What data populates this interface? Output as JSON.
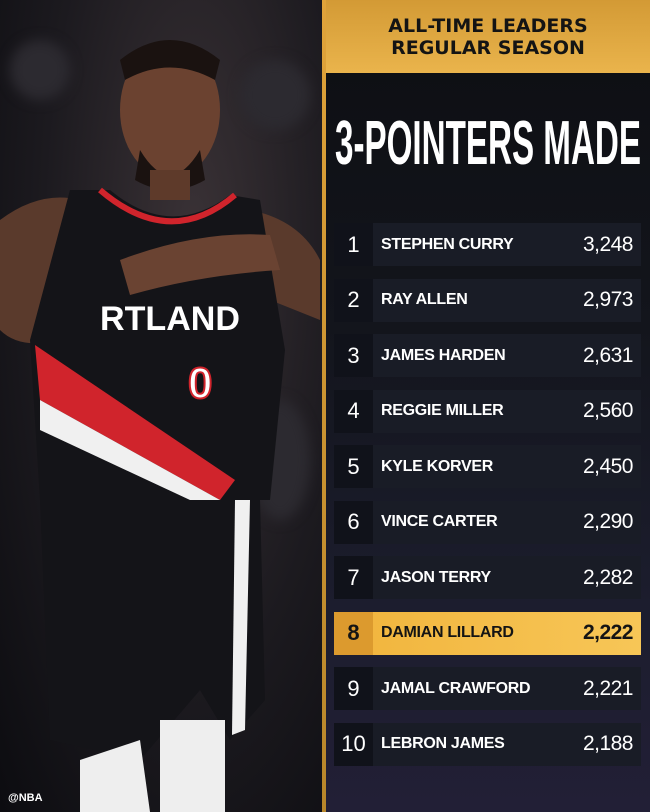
{
  "header": {
    "line1": "ALL-TIME LEADERS",
    "line2": "REGULAR SEASON"
  },
  "title": "3-POINTERS MADE",
  "highlight_color": "#f1b43c",
  "leaders": [
    {
      "rank": "1",
      "name": "STEPHEN CURRY",
      "value": "3,248"
    },
    {
      "rank": "2",
      "name": "RAY ALLEN",
      "value": "2,973"
    },
    {
      "rank": "3",
      "name": "JAMES HARDEN",
      "value": "2,631"
    },
    {
      "rank": "4",
      "name": "REGGIE MILLER",
      "value": "2,560"
    },
    {
      "rank": "5",
      "name": "KYLE KORVER",
      "value": "2,450"
    },
    {
      "rank": "6",
      "name": "VINCE CARTER",
      "value": "2,290"
    },
    {
      "rank": "7",
      "name": "JASON TERRY",
      "value": "2,282"
    },
    {
      "rank": "8",
      "name": "DAMIAN LILLARD",
      "value": "2,222",
      "highlighted": true
    },
    {
      "rank": "9",
      "name": "JAMAL CRAWFORD",
      "value": "2,221"
    },
    {
      "rank": "10",
      "name": "LEBRON JAMES",
      "value": "2,188"
    }
  ],
  "photo": {
    "jersey_text": "RTLAND",
    "jersey_number": "0"
  },
  "watermark": "@NBA"
}
